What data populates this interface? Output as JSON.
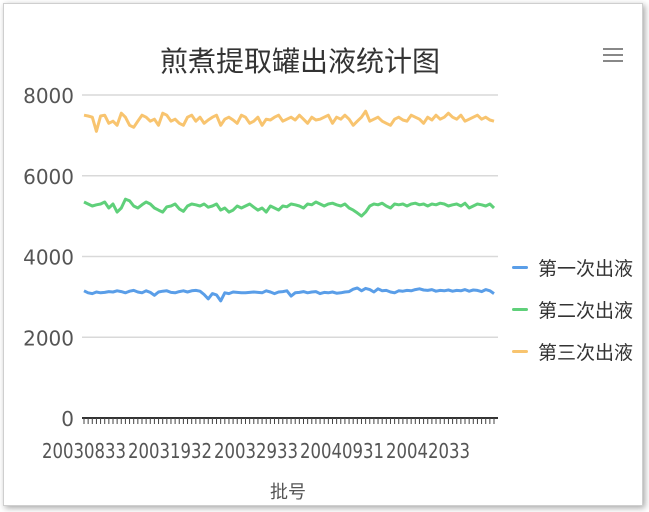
{
  "title": "煎煮提取罐出液统计图",
  "menu_icon": "hamburger-menu-icon",
  "x_axis_name": "批号",
  "legend": [
    {
      "label": "第一次出液",
      "color": "#5a9ee8"
    },
    {
      "label": "第二次出液",
      "color": "#5fd07a"
    },
    {
      "label": "第三次出液",
      "color": "#f8c46f"
    }
  ],
  "chart_data": {
    "type": "line",
    "title": "煎煮提取罐出液统计图",
    "xlabel": "批号",
    "ylabel": "",
    "ylim": [
      0,
      8000
    ],
    "y_ticks": [
      "0",
      "2000",
      "4000",
      "6000",
      "8000"
    ],
    "x_tick_labels": [
      "20030833",
      "20031932",
      "20032933",
      "20040931",
      "20042033"
    ],
    "grid": true,
    "legend_position": "right",
    "series": [
      {
        "name": "第一次出液",
        "color": "#5a9ee8",
        "values": [
          3150,
          3100,
          3080,
          3120,
          3100,
          3110,
          3130,
          3120,
          3150,
          3130,
          3100,
          3140,
          3160,
          3120,
          3100,
          3150,
          3110,
          3040,
          3120,
          3140,
          3150,
          3110,
          3100,
          3130,
          3150,
          3120,
          3150,
          3160,
          3140,
          3060,
          2950,
          3080,
          3050,
          2900,
          3100,
          3080,
          3120,
          3110,
          3100,
          3100,
          3110,
          3120,
          3110,
          3100,
          3150,
          3120,
          3080,
          3120,
          3130,
          3150,
          3020,
          3100,
          3110,
          3130,
          3100,
          3120,
          3130,
          3080,
          3110,
          3100,
          3120,
          3090,
          3100,
          3120,
          3130,
          3190,
          3220,
          3150,
          3210,
          3180,
          3120,
          3200,
          3150,
          3160,
          3120,
          3100,
          3150,
          3140,
          3160,
          3150,
          3180,
          3200,
          3170,
          3160,
          3180,
          3140,
          3160,
          3150,
          3170,
          3140,
          3160,
          3150,
          3180,
          3140,
          3170,
          3160,
          3130,
          3180,
          3150,
          3080
        ]
      },
      {
        "name": "第二次出液",
        "color": "#5fd07a",
        "values": [
          5350,
          5300,
          5250,
          5280,
          5300,
          5350,
          5200,
          5300,
          5100,
          5200,
          5420,
          5380,
          5250,
          5200,
          5280,
          5350,
          5300,
          5200,
          5150,
          5100,
          5230,
          5250,
          5300,
          5180,
          5120,
          5250,
          5300,
          5280,
          5250,
          5300,
          5220,
          5250,
          5300,
          5150,
          5200,
          5100,
          5150,
          5250,
          5200,
          5250,
          5300,
          5220,
          5150,
          5200,
          5100,
          5250,
          5200,
          5150,
          5250,
          5230,
          5300,
          5280,
          5250,
          5200,
          5300,
          5280,
          5350,
          5300,
          5250,
          5300,
          5320,
          5280,
          5250,
          5300,
          5200,
          5150,
          5080,
          5000,
          5100,
          5250,
          5300,
          5280,
          5320,
          5250,
          5200,
          5300,
          5280,
          5300,
          5250,
          5300,
          5320,
          5280,
          5300,
          5250,
          5300,
          5280,
          5320,
          5300,
          5250,
          5280,
          5300,
          5250,
          5320,
          5200,
          5250,
          5300,
          5280,
          5250,
          5300,
          5200
        ]
      },
      {
        "name": "第三次出液",
        "color": "#f8c46f",
        "values": [
          7500,
          7480,
          7450,
          7100,
          7480,
          7500,
          7300,
          7350,
          7250,
          7550,
          7450,
          7250,
          7200,
          7350,
          7500,
          7450,
          7350,
          7400,
          7250,
          7550,
          7500,
          7350,
          7400,
          7300,
          7250,
          7450,
          7500,
          7350,
          7450,
          7300,
          7380,
          7450,
          7500,
          7250,
          7400,
          7450,
          7380,
          7300,
          7500,
          7450,
          7300,
          7350,
          7450,
          7250,
          7400,
          7380,
          7450,
          7500,
          7350,
          7400,
          7450,
          7380,
          7500,
          7400,
          7300,
          7450,
          7380,
          7400,
          7450,
          7500,
          7300,
          7450,
          7400,
          7500,
          7400,
          7250,
          7350,
          7450,
          7600,
          7350,
          7400,
          7450,
          7350,
          7300,
          7250,
          7400,
          7450,
          7380,
          7350,
          7500,
          7450,
          7400,
          7300,
          7450,
          7380,
          7500,
          7400,
          7450,
          7550,
          7450,
          7400,
          7500,
          7350,
          7400,
          7450,
          7500,
          7400,
          7450,
          7380,
          7350
        ]
      }
    ]
  }
}
